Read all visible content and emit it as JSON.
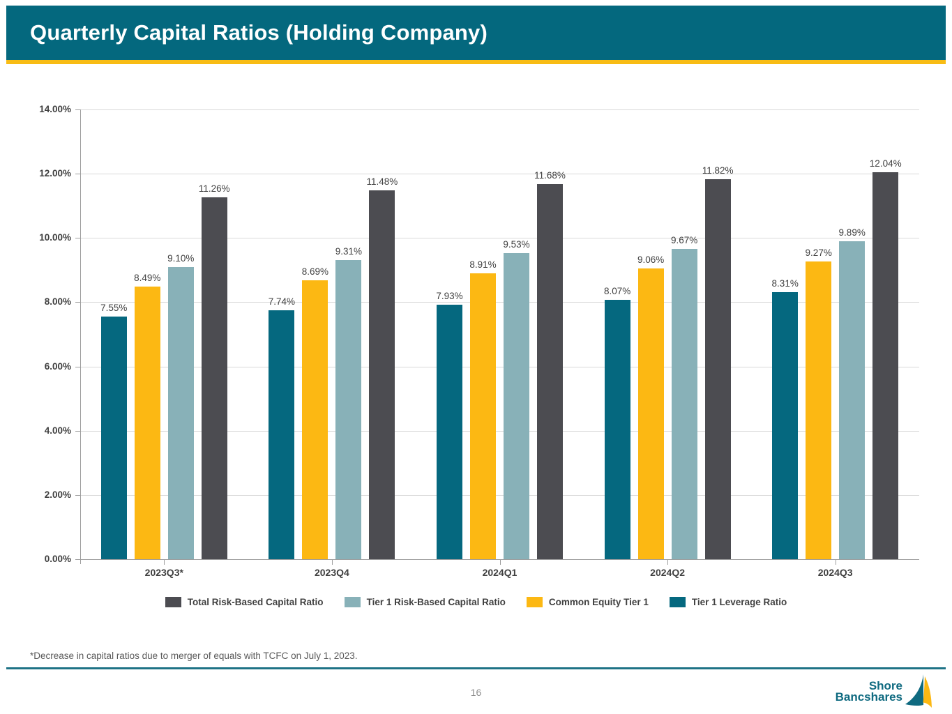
{
  "colors": {
    "header_teal": "#04687e",
    "gold_accent": "#f8bc15",
    "footer_line_teal": "#1e7386",
    "logo_teal": "#0f6a80",
    "logo_gold": "#fcb813",
    "gridline": "#d9d9d9",
    "axis": "#9e9e9e",
    "label_text": "#404040",
    "footnote_text": "#595959",
    "page_text": "#8c8c8c"
  },
  "header": {
    "title": "Quarterly Capital Ratios (Holding Company)"
  },
  "chart_data": {
    "type": "bar",
    "title": "Quarterly Capital Ratios (Holding Company)",
    "categories": [
      "2023Q3*",
      "2023Q4",
      "2024Q1",
      "2024Q2",
      "2024Q3"
    ],
    "series": [
      {
        "name": "Tier 1 Leverage Ratio",
        "color": "#05687f",
        "values": [
          7.55,
          7.74,
          7.93,
          8.07,
          8.31
        ]
      },
      {
        "name": "Common Equity Tier 1",
        "color": "#fcb813",
        "values": [
          8.49,
          8.69,
          8.91,
          9.06,
          9.27
        ]
      },
      {
        "name": "Tier 1 Risk-Based Capital Ratio",
        "color": "#88b1b8",
        "values": [
          9.1,
          9.31,
          9.53,
          9.67,
          9.89
        ]
      },
      {
        "name": "Total Risk-Based Capital Ratio",
        "color": "#4c4c51",
        "values": [
          11.26,
          11.48,
          11.68,
          11.82,
          12.04
        ]
      }
    ],
    "data_labels": [
      [
        "7.55%",
        "7.74%",
        "7.93%",
        "8.07%",
        "8.31%"
      ],
      [
        "8.49%",
        "8.69%",
        "8.91%",
        "9.06%",
        "9.27%"
      ],
      [
        "9.10%",
        "9.31%",
        "9.53%",
        "9.67%",
        "9.89%"
      ],
      [
        "11.26%",
        "11.48%",
        "11.68%",
        "11.82%",
        "12.04%"
      ]
    ],
    "xlabel": "",
    "ylabel": "",
    "ylim": [
      0,
      14
    ],
    "ytick_step": 2,
    "ytick_labels": [
      "0.00%",
      "2.00%",
      "4.00%",
      "6.00%",
      "8.00%",
      "10.00%",
      "12.00%",
      "14.00%"
    ],
    "grid": "horizontal",
    "legend_position": "bottom",
    "legend_order": [
      "Total Risk-Based Capital Ratio",
      "Tier 1 Risk-Based Capital Ratio",
      "Common Equity Tier 1",
      "Tier 1 Leverage Ratio"
    ]
  },
  "footnote": "*Decrease in capital ratios due to merger of equals with TCFC on July 1, 2023.",
  "footer": {
    "page_number": "16",
    "logo_line1": "Shore",
    "logo_line2": "Bancshares"
  }
}
